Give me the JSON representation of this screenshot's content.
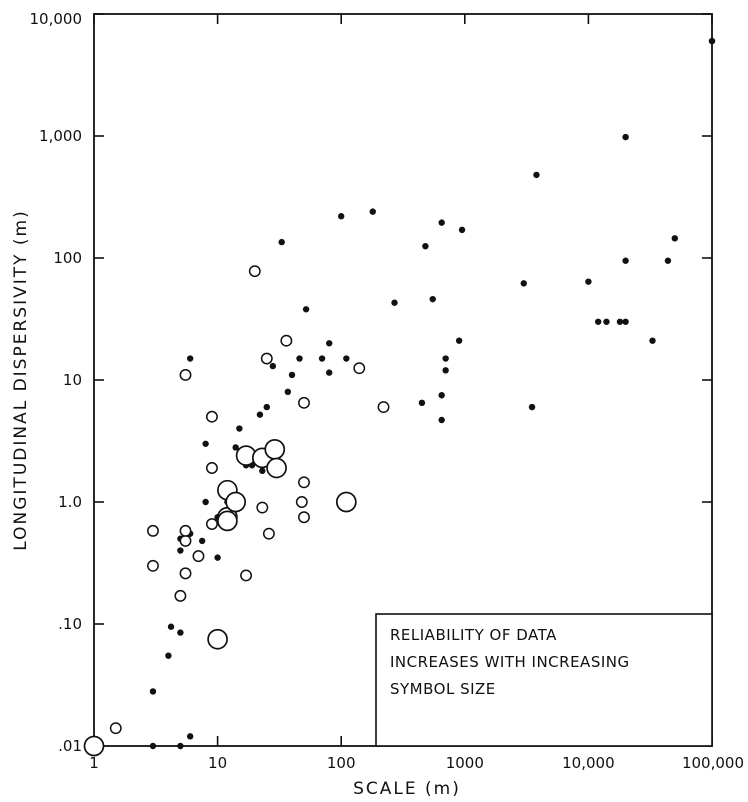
{
  "chart_data": {
    "type": "scatter",
    "title": "",
    "xlabel": "SCALE (m)",
    "ylabel": "LONGITUDINAL DISPERSIVITY (m)",
    "xscale": "log",
    "yscale": "log",
    "xlim": [
      1,
      100000
    ],
    "ylim": [
      0.01,
      10000
    ],
    "grid": false,
    "x_ticks": [
      {
        "value": 1,
        "label": "1"
      },
      {
        "value": 10,
        "label": "10"
      },
      {
        "value": 100,
        "label": "100"
      },
      {
        "value": 1000,
        "label": "1000"
      },
      {
        "value": 10000,
        "label": "10,000"
      },
      {
        "value": 100000,
        "label": "100,000"
      }
    ],
    "y_ticks": [
      {
        "value": 0.01,
        "label": ".01"
      },
      {
        "value": 0.1,
        "label": ".10"
      },
      {
        "value": 1,
        "label": "1.0"
      },
      {
        "value": 10,
        "label": "10"
      },
      {
        "value": 100,
        "label": "100"
      },
      {
        "value": 1000,
        "label": "1,000"
      },
      {
        "value": 10000,
        "label": "10,000"
      }
    ],
    "annotation": {
      "lines": [
        "RELIABILITY OF DATA",
        "INCREASES WITH INCREASING",
        "SYMBOL SIZE"
      ],
      "placement": "bottom-right"
    },
    "series": [
      {
        "reliability": "low",
        "marker": "filled-dot",
        "points": [
          [
            3,
            0.01
          ],
          [
            5,
            0.01
          ],
          [
            6,
            0.012
          ],
          [
            3,
            0.028
          ],
          [
            4,
            0.055
          ],
          [
            4.2,
            0.095
          ],
          [
            5,
            0.085
          ],
          [
            5,
            0.4
          ],
          [
            5,
            0.5
          ],
          [
            6,
            0.55
          ],
          [
            7.5,
            0.48
          ],
          [
            8,
            1.0
          ],
          [
            8,
            3
          ],
          [
            6,
            15
          ],
          [
            10,
            0.35
          ],
          [
            10,
            0.75
          ],
          [
            11,
            0.75
          ],
          [
            12,
            1.0
          ],
          [
            14,
            2.8
          ],
          [
            15,
            4
          ],
          [
            17,
            2
          ],
          [
            19,
            2
          ],
          [
            22,
            5.2
          ],
          [
            23,
            1.8
          ],
          [
            25,
            6
          ],
          [
            28,
            13
          ],
          [
            33,
            135
          ],
          [
            37,
            8
          ],
          [
            40,
            11
          ],
          [
            46,
            15
          ],
          [
            52,
            38
          ],
          [
            70,
            15
          ],
          [
            80,
            11.5
          ],
          [
            80,
            20
          ],
          [
            100,
            220
          ],
          [
            110,
            15
          ],
          [
            180,
            240
          ],
          [
            270,
            43
          ],
          [
            450,
            6.5
          ],
          [
            480,
            125
          ],
          [
            550,
            46
          ],
          [
            650,
            195
          ],
          [
            650,
            4.7
          ],
          [
            650,
            7.5
          ],
          [
            700,
            12
          ],
          [
            700,
            15
          ],
          [
            900,
            21
          ],
          [
            950,
            170
          ],
          [
            3000,
            62
          ],
          [
            3500,
            6
          ],
          [
            3800,
            480
          ],
          [
            10000,
            64
          ],
          [
            12000,
            30
          ],
          [
            14000,
            30
          ],
          [
            18000,
            30
          ],
          [
            20000,
            30
          ],
          [
            20000,
            980
          ],
          [
            20000,
            95
          ],
          [
            33000,
            21
          ],
          [
            44000,
            95
          ],
          [
            50000,
            145
          ],
          [
            100000,
            6000
          ]
        ]
      },
      {
        "reliability": "intermediate",
        "marker": "small-open-circle",
        "points": [
          [
            1.5,
            0.014
          ],
          [
            3,
            0.58
          ],
          [
            3,
            0.3
          ],
          [
            5,
            0.17
          ],
          [
            5.5,
            0.26
          ],
          [
            5.5,
            0.48
          ],
          [
            5.5,
            0.58
          ],
          [
            5.5,
            11
          ],
          [
            7,
            0.36
          ],
          [
            9,
            0.66
          ],
          [
            9,
            1.9
          ],
          [
            9,
            5
          ],
          [
            17,
            0.25
          ],
          [
            20,
            78
          ],
          [
            23,
            0.9
          ],
          [
            25,
            15
          ],
          [
            26,
            0.55
          ],
          [
            36,
            21
          ],
          [
            48,
            1.0
          ],
          [
            50,
            6.5
          ],
          [
            50,
            0.75
          ],
          [
            50,
            1.45
          ],
          [
            140,
            12.5
          ],
          [
            220,
            6
          ]
        ]
      },
      {
        "reliability": "high",
        "marker": "large-open-circle",
        "points": [
          [
            1,
            0.01
          ],
          [
            10,
            0.075
          ],
          [
            12,
            1.25
          ],
          [
            12,
            0.75
          ],
          [
            12,
            0.7
          ],
          [
            14,
            1.0
          ],
          [
            17,
            2.4
          ],
          [
            23,
            2.3
          ],
          [
            29,
            2.7
          ],
          [
            30,
            1.9
          ],
          [
            110,
            1.0
          ]
        ]
      }
    ]
  }
}
